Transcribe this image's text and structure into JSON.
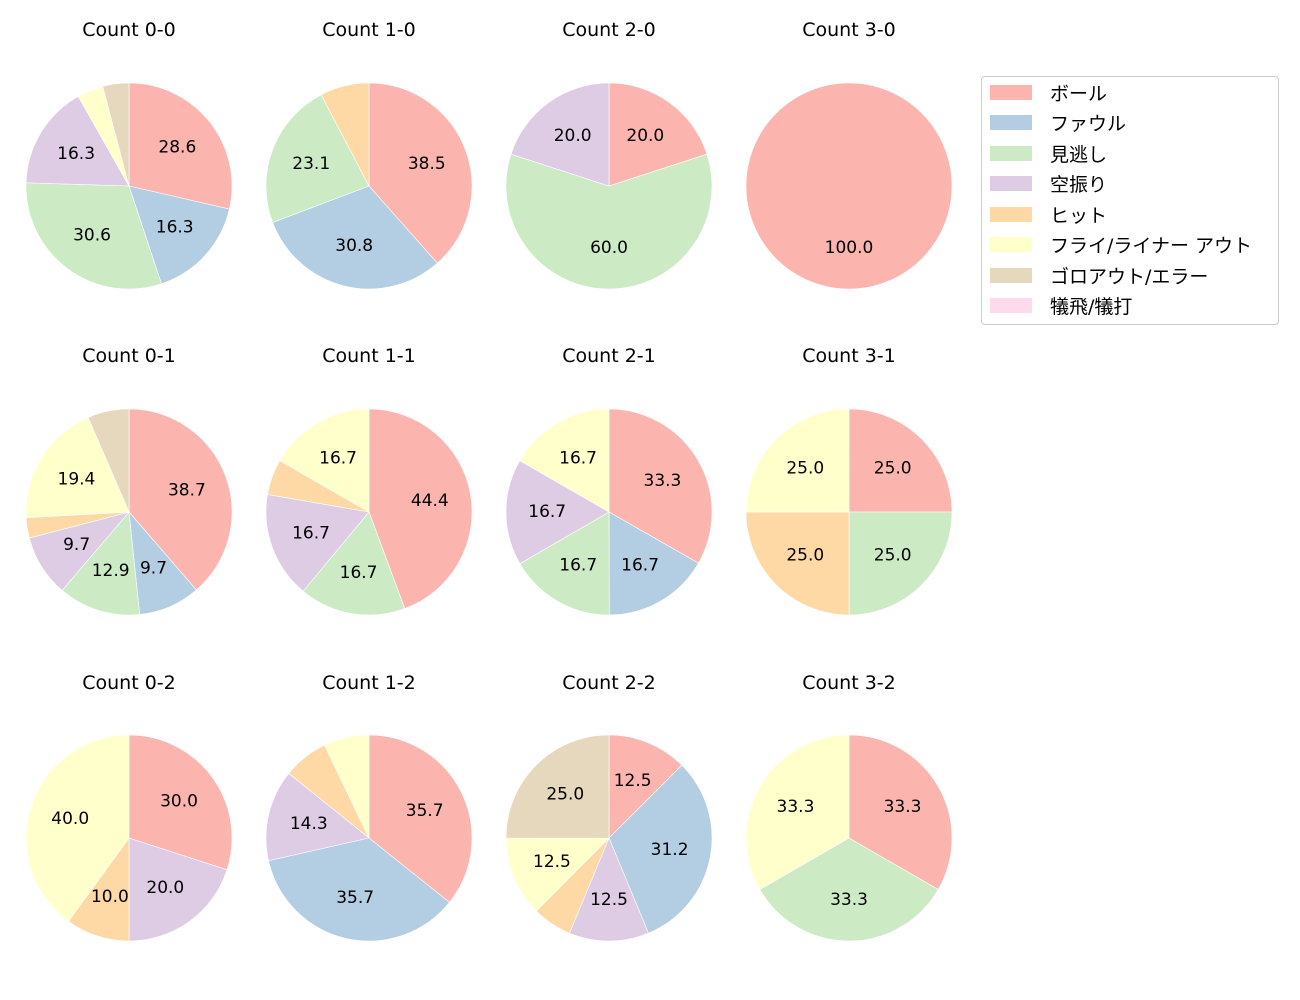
{
  "chart_data": {
    "type": "pie",
    "categories": [
      "ボール",
      "ファウル",
      "見逃し",
      "空振り",
      "ヒット",
      "フライ/ライナー アウト",
      "ゴロアウト/エラー",
      "犠飛/犠打"
    ],
    "colors": [
      "#fbb4ae",
      "#b3cde3",
      "#ccebc5",
      "#decbe4",
      "#fed9a6",
      "#ffffcc",
      "#e5d8bd",
      "#fddaec"
    ],
    "legend_position": "upper right",
    "charts": [
      {
        "title": "Count 0-0",
        "row": 0,
        "col": 0,
        "values": [
          28.6,
          16.3,
          30.6,
          16.3,
          0,
          4.1,
          4.1,
          0
        ],
        "labels": [
          "28.6",
          "16.3",
          "30.6",
          "16.3",
          "",
          "",
          "",
          ""
        ]
      },
      {
        "title": "Count 1-0",
        "row": 0,
        "col": 1,
        "values": [
          38.5,
          30.8,
          23.1,
          0,
          7.7,
          0,
          0,
          0
        ],
        "labels": [
          "38.5",
          "30.8",
          "23.1",
          "",
          "",
          "",
          "",
          ""
        ]
      },
      {
        "title": "Count 2-0",
        "row": 0,
        "col": 2,
        "values": [
          20.0,
          0,
          60.0,
          20.0,
          0,
          0,
          0,
          0
        ],
        "labels": [
          "20.0",
          "",
          "60.0",
          "20.0",
          "",
          "",
          "",
          ""
        ]
      },
      {
        "title": "Count 3-0",
        "row": 0,
        "col": 3,
        "values": [
          100.0,
          0,
          0,
          0,
          0,
          0,
          0,
          0
        ],
        "labels": [
          "100.0",
          "",
          "",
          "",
          "",
          "",
          "",
          ""
        ]
      },
      {
        "title": "Count 0-1",
        "row": 1,
        "col": 0,
        "values": [
          38.7,
          9.7,
          12.9,
          9.7,
          3.2,
          19.4,
          6.5,
          0
        ],
        "labels": [
          "38.7",
          "9.7",
          "12.9",
          "9.7",
          "",
          "19.4",
          "",
          ""
        ]
      },
      {
        "title": "Count 1-1",
        "row": 1,
        "col": 1,
        "values": [
          44.4,
          0,
          16.7,
          16.7,
          5.6,
          16.7,
          0,
          0
        ],
        "labels": [
          "44.4",
          "",
          "16.7",
          "16.7",
          "",
          "16.7",
          "",
          ""
        ]
      },
      {
        "title": "Count 2-1",
        "row": 1,
        "col": 2,
        "values": [
          33.3,
          16.7,
          16.7,
          16.7,
          0,
          16.7,
          0,
          0
        ],
        "labels": [
          "33.3",
          "16.7",
          "16.7",
          "16.7",
          "",
          "16.7",
          "",
          ""
        ]
      },
      {
        "title": "Count 3-1",
        "row": 1,
        "col": 3,
        "values": [
          25.0,
          0,
          25.0,
          0,
          25.0,
          25.0,
          0,
          0
        ],
        "labels": [
          "25.0",
          "",
          "25.0",
          "",
          "25.0",
          "25.0",
          "",
          ""
        ]
      },
      {
        "title": "Count 0-2",
        "row": 2,
        "col": 0,
        "values": [
          30.0,
          0,
          0,
          20.0,
          10.0,
          40.0,
          0,
          0
        ],
        "labels": [
          "30.0",
          "",
          "",
          "20.0",
          "10.0",
          "40.0",
          "",
          ""
        ]
      },
      {
        "title": "Count 1-2",
        "row": 2,
        "col": 1,
        "values": [
          35.7,
          35.7,
          0,
          14.3,
          7.1,
          7.1,
          0,
          0
        ],
        "labels": [
          "35.7",
          "35.7",
          "",
          "14.3",
          "",
          "",
          "",
          ""
        ]
      },
      {
        "title": "Count 2-2",
        "row": 2,
        "col": 2,
        "values": [
          12.5,
          31.2,
          0,
          12.5,
          6.2,
          12.5,
          25.0,
          0
        ],
        "labels": [
          "12.5",
          "31.2",
          "",
          "12.5",
          "",
          "12.5",
          "25.0",
          ""
        ]
      },
      {
        "title": "Count 3-2",
        "row": 2,
        "col": 3,
        "values": [
          33.3,
          0,
          33.3,
          0,
          0,
          33.3,
          0,
          0
        ],
        "labels": [
          "33.3",
          "",
          "33.3",
          "",
          "",
          "33.3",
          "",
          ""
        ]
      }
    ]
  },
  "legend": {
    "items": [
      {
        "label": "ボール",
        "color": "#fbb4ae"
      },
      {
        "label": "ファウル",
        "color": "#b3cde3"
      },
      {
        "label": "見逃し",
        "color": "#ccebc5"
      },
      {
        "label": "空振り",
        "color": "#decbe4"
      },
      {
        "label": "ヒット",
        "color": "#fed9a6"
      },
      {
        "label": "フライ/ライナー アウト",
        "color": "#ffffcc"
      },
      {
        "label": "ゴロアウト/エラー",
        "color": "#e5d8bd"
      },
      {
        "label": "犠飛/犠打",
        "color": "#fddaec"
      }
    ]
  }
}
